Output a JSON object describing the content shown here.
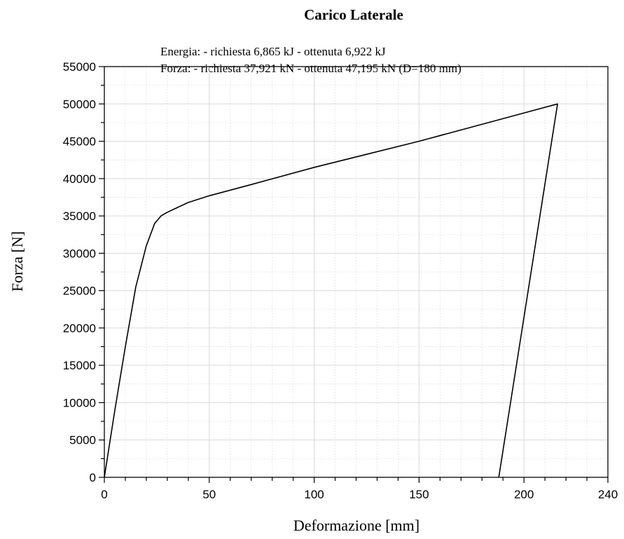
{
  "chart_data": {
    "type": "line",
    "title": "Carico Laterale",
    "annotations": [
      "Energia: - richiesta 6,865 kJ - ottenuta 6,922 kJ",
      "Forza: - richiesta 37,921 kN - ottenuta 47,195 kN (D=180 mm)"
    ],
    "xlabel": "Deformazione [mm]",
    "ylabel": "Forza [N]",
    "xlim": [
      0,
      240
    ],
    "ylim": [
      0,
      55000
    ],
    "x_ticks": [
      "0",
      "50",
      "100",
      "150",
      "200",
      "240"
    ],
    "y_ticks": [
      "0",
      "5000",
      "10000",
      "15000",
      "20000",
      "25000",
      "30000",
      "35000",
      "40000",
      "45000",
      "50000",
      "55000"
    ],
    "grid": true,
    "series": [
      {
        "x": [
          0,
          5,
          10,
          15,
          20,
          24,
          27,
          30,
          40,
          50,
          70,
          100,
          150,
          216,
          188
        ],
        "y": [
          0,
          9000,
          17500,
          25500,
          31000,
          34000,
          35000,
          35500,
          36800,
          37700,
          39200,
          41500,
          45000,
          50000,
          0
        ]
      }
    ],
    "colors": {
      "line": "#000000",
      "grid": "#d9d9d9",
      "axis": "#000000"
    }
  }
}
